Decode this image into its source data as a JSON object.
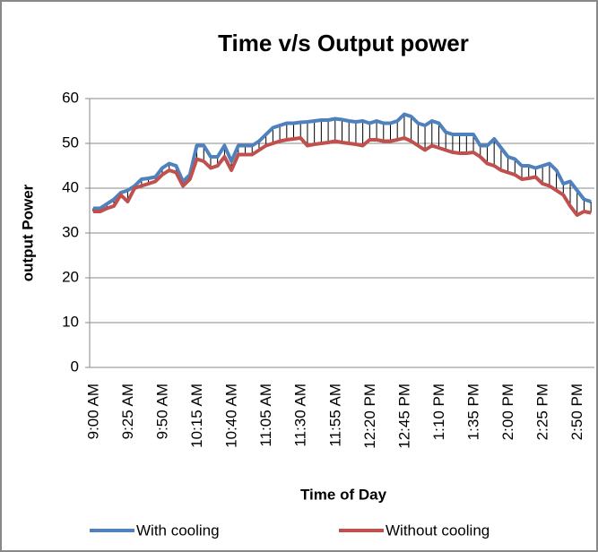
{
  "chart_data": {
    "type": "line",
    "title": "Time v/s Output power",
    "x_label": "Time of Day",
    "y_label": "output Power",
    "categories": [
      "9:00 AM",
      null,
      null,
      null,
      null,
      "9:25 AM",
      null,
      null,
      null,
      null,
      "9:50 AM",
      null,
      null,
      null,
      null,
      "10:15 AM",
      null,
      null,
      null,
      null,
      "10:40 AM",
      null,
      null,
      null,
      null,
      "11:05 AM",
      null,
      null,
      null,
      null,
      "11:30 AM",
      null,
      null,
      null,
      null,
      "11:55 AM",
      null,
      null,
      null,
      null,
      "12:20 PM",
      null,
      null,
      null,
      null,
      "12:45 PM",
      null,
      null,
      null,
      null,
      "1:10 PM",
      null,
      null,
      null,
      null,
      "1:35 PM",
      null,
      null,
      null,
      null,
      "2:00 PM",
      null,
      null,
      null,
      null,
      "2:25 PM",
      null,
      null,
      null,
      null,
      "2:50 PM",
      null,
      null
    ],
    "series": [
      {
        "name": "With cooling",
        "color": "#4f81bd",
        "values": [
          35.5,
          35.5,
          36.5,
          37.5,
          39,
          39.5,
          40.5,
          42,
          42.2,
          42.5,
          44.5,
          45.5,
          45,
          41.5,
          43,
          49.5,
          49.5,
          47,
          47,
          49.5,
          46,
          49.5,
          49.5,
          49.5,
          50.5,
          52,
          53.5,
          54,
          54.5,
          54.5,
          54.7,
          54.8,
          55,
          55.2,
          55.2,
          55.5,
          55.3,
          55,
          54.8,
          55,
          54.5,
          55,
          54.5,
          54.5,
          55,
          56.5,
          56,
          54.5,
          54,
          55,
          54.5,
          52.5,
          52,
          52,
          52,
          52,
          49.5,
          49.5,
          51,
          49,
          47,
          46.5,
          45,
          45,
          44.5,
          45,
          45.5,
          44,
          41,
          41.5,
          39.5,
          37.5,
          37
        ]
      },
      {
        "name": "Without cooling",
        "color": "#c0504d",
        "values": [
          34.8,
          34.8,
          35.5,
          36,
          38.5,
          37,
          40,
          40.5,
          41,
          41.5,
          43,
          44,
          43.5,
          40.5,
          42,
          46.5,
          46,
          44.5,
          45,
          47,
          44,
          47.5,
          47.5,
          47.5,
          48.5,
          49.5,
          50,
          50.5,
          50.8,
          51,
          51.2,
          49.5,
          49.8,
          50,
          50.2,
          50.5,
          50.2,
          50,
          49.8,
          49.5,
          50.8,
          50.8,
          50.5,
          50.5,
          50.8,
          51.2,
          50.5,
          49.5,
          48.5,
          49.5,
          49,
          48.5,
          48,
          47.8,
          47.8,
          48,
          47,
          45.5,
          45,
          44,
          43.5,
          43,
          42,
          42.2,
          42.5,
          41,
          40.5,
          39.5,
          38.5,
          36,
          34,
          34.8,
          34.5
        ]
      }
    ],
    "drop_lines": true,
    "ylim": [
      0,
      60
    ],
    "yticks": [
      0,
      10,
      20,
      30,
      40,
      50,
      60
    ],
    "grid": true,
    "legend": "bottom"
  }
}
